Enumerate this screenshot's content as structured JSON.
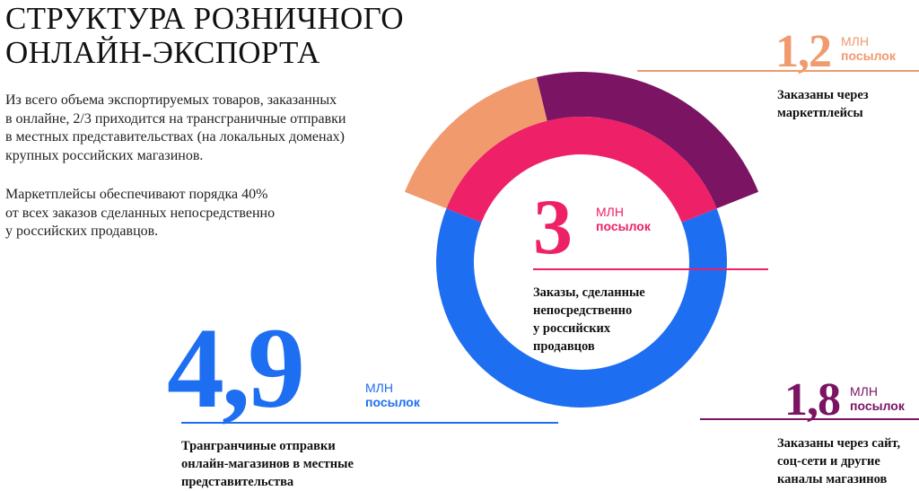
{
  "title": "СТРУКТУРА РОЗНИЧНОГО\nОНЛАЙН-ЭКСПОРТА",
  "paragraph1": "Из всего объема экспортируемых товаров, заказанных\nв онлайне, 2/3 приходится на трансграничные отправки\nв местных представительствах (на локальных доменах)\nкрупных российских магазинов.",
  "paragraph2": "Маркетплейсы обеспечивают порядка 40%\nот всех заказов сделанных непосредственно\nу российских продавцов.",
  "colors": {
    "blue": "#1e6ef2",
    "pink": "#ee2068",
    "peach": "#f09a6e",
    "purple": "#7b1463"
  },
  "chart_data": {
    "type": "pie",
    "unit_top": "МЛН",
    "unit_bottom": "посылок",
    "outer_ring": [
      {
        "value": 4.9,
        "label": "4,9",
        "description": "Трангранчиные отправки\nонлайн-магазинов в местные\nпредставительства",
        "color": "#1e6ef2"
      },
      {
        "value": 1.2,
        "label": "1,2",
        "description": "Заказаны через\nмаркетплейсы",
        "color": "#f09a6e"
      },
      {
        "value": 1.8,
        "label": "1,8",
        "description": "Заказаны через сайт,\nсоц-сети и другие\nканалы магазинов",
        "color": "#7b1463"
      }
    ],
    "inner_ring": [
      {
        "value": 4.9,
        "color": "#1e6ef2"
      },
      {
        "value": 3,
        "label": "3",
        "description": "Заказы, сделанные\nнепосредственно\nу российских\nпродавцов",
        "color": "#ee2068"
      }
    ]
  }
}
